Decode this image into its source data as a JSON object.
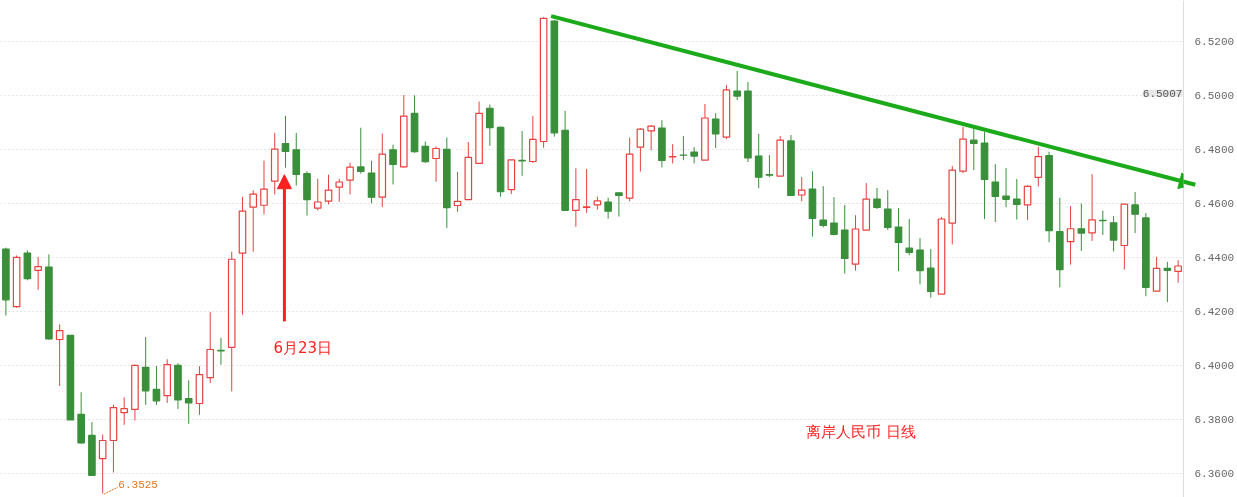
{
  "chart_data": {
    "type": "candlestick",
    "categories": [
      null,
      null,
      null,
      null,
      null,
      null,
      null,
      null,
      null,
      null,
      null,
      null,
      null,
      null,
      null,
      null,
      null,
      null,
      null,
      null,
      null,
      null,
      null,
      null,
      null,
      null,
      null,
      null,
      null,
      null,
      null,
      null,
      null,
      null,
      null,
      null,
      null,
      null,
      null,
      null,
      null,
      null,
      null,
      null,
      null,
      null,
      null,
      null,
      null,
      null,
      null,
      null,
      null,
      null,
      null,
      null,
      null,
      null,
      null,
      null,
      null,
      null,
      null,
      null,
      null,
      null,
      null,
      null,
      null,
      null,
      null,
      null,
      null,
      null,
      null,
      null,
      null,
      null,
      null,
      null,
      null,
      null,
      null,
      null,
      null,
      null,
      null,
      null,
      null,
      null,
      null,
      null,
      null,
      null,
      null,
      null,
      null,
      null,
      null,
      null,
      null,
      null,
      null,
      null,
      null,
      null,
      null,
      null,
      null,
      null
    ],
    "ohlc": [
      [
        6.443,
        6.4435,
        6.4184,
        6.4242
      ],
      [
        6.4217,
        6.4406,
        6.4212,
        6.4399
      ],
      [
        6.4415,
        6.4425,
        6.4314,
        6.432
      ],
      [
        6.4351,
        6.44,
        6.4279,
        6.4365
      ],
      [
        6.4363,
        6.441,
        6.4094,
        6.4097
      ],
      [
        6.4095,
        6.4151,
        6.3923,
        6.4128
      ],
      [
        6.411,
        6.411,
        6.3797,
        6.3797
      ],
      [
        6.3818,
        6.39,
        6.3708,
        6.3712
      ],
      [
        6.374,
        6.3789,
        6.359,
        6.3592
      ],
      [
        6.3654,
        6.3743,
        6.3525,
        6.3721
      ],
      [
        6.3721,
        6.3854,
        6.3603,
        6.3843
      ],
      [
        6.3824,
        6.3881,
        6.3779,
        6.3839
      ],
      [
        6.3836,
        6.4002,
        6.3795,
        6.3999
      ],
      [
        6.3992,
        6.4104,
        6.3853,
        6.3905
      ],
      [
        6.391,
        6.3997,
        6.3853,
        6.3868
      ],
      [
        6.3887,
        6.4022,
        6.386,
        6.4002
      ],
      [
        6.3999,
        6.4007,
        6.3838,
        6.3871
      ],
      [
        6.3876,
        6.3944,
        6.3783,
        6.386
      ],
      [
        6.3858,
        6.3996,
        6.3816,
        6.3965
      ],
      [
        6.3954,
        6.4196,
        6.3934,
        6.4058
      ],
      [
        6.4055,
        6.4101,
        6.4002,
        6.4053
      ],
      [
        6.4066,
        6.442,
        6.3903,
        6.4392
      ],
      [
        6.4415,
        6.4623,
        6.4187,
        6.457
      ],
      [
        6.4585,
        6.4647,
        6.442,
        6.4633
      ],
      [
        6.4592,
        6.4757,
        6.4558,
        6.4652
      ],
      [
        6.4681,
        6.486,
        6.4632,
        6.48
      ],
      [
        6.482,
        6.4923,
        6.4731,
        6.4791
      ],
      [
        6.4797,
        6.486,
        6.4665,
        6.4706
      ],
      [
        6.4709,
        6.4718,
        6.4554,
        6.4613
      ],
      [
        6.4581,
        6.469,
        6.4573,
        6.4604
      ],
      [
        6.4607,
        6.4705,
        6.4595,
        6.4648
      ],
      [
        6.4659,
        6.469,
        6.4605,
        6.4678
      ],
      [
        6.4685,
        6.4749,
        6.4632,
        6.4733
      ],
      [
        6.4734,
        6.4879,
        6.4709,
        6.4717
      ],
      [
        6.4711,
        6.4757,
        6.4599,
        6.4622
      ],
      [
        6.4622,
        6.4857,
        6.4586,
        6.4781
      ],
      [
        6.4797,
        6.4816,
        6.4669,
        6.4743
      ],
      [
        6.4734,
        6.5,
        6.4731,
        6.4922
      ],
      [
        6.4932,
        6.4999,
        6.4786,
        6.479
      ],
      [
        6.481,
        6.4828,
        6.4749,
        6.4753
      ],
      [
        6.4765,
        6.481,
        6.4679,
        6.4802
      ],
      [
        6.4799,
        6.4843,
        6.4508,
        6.4583
      ],
      [
        6.4591,
        6.4715,
        6.4568,
        6.4606
      ],
      [
        6.4613,
        6.4826,
        6.4613,
        6.4769
      ],
      [
        6.4747,
        6.4976,
        6.4747,
        6.4932
      ],
      [
        6.4951,
        6.4965,
        6.4812,
        6.4879
      ],
      [
        6.488,
        6.4884,
        6.4623,
        6.4642
      ],
      [
        6.465,
        6.476,
        6.4634,
        6.476
      ],
      [
        6.4758,
        6.4867,
        6.4701,
        6.4756
      ],
      [
        6.4754,
        6.4922,
        6.4749,
        6.4836
      ],
      [
        6.4828,
        6.5288,
        6.4805,
        6.5284
      ],
      [
        6.5274,
        6.5278,
        6.4846,
        6.486
      ],
      [
        6.4869,
        6.4941,
        6.4573,
        6.4573
      ],
      [
        6.4573,
        6.4729,
        6.4512,
        6.4613
      ],
      [
        6.4584,
        6.4726,
        6.4564,
        6.4586
      ],
      [
        6.4593,
        6.4624,
        6.4576,
        6.4608
      ],
      [
        6.4604,
        6.462,
        6.4542,
        6.457
      ],
      [
        6.4638,
        6.4638,
        6.455,
        6.4628
      ],
      [
        6.4618,
        6.4842,
        6.4607,
        6.4781
      ],
      [
        6.4807,
        6.4878,
        6.4717,
        6.4874
      ],
      [
        6.4867,
        6.4889,
        6.4795,
        6.4885
      ],
      [
        6.4878,
        6.4907,
        6.4732,
        6.4758
      ],
      [
        6.4771,
        6.4818,
        6.4747,
        6.4772
      ],
      [
        6.4778,
        6.4848,
        6.4759,
        6.4777
      ],
      [
        6.4789,
        6.4807,
        6.4747,
        6.4774
      ],
      [
        6.4759,
        6.4967,
        6.4759,
        6.4915
      ],
      [
        6.4911,
        6.4933,
        6.4804,
        6.4856
      ],
      [
        6.4844,
        6.5037,
        6.4837,
        6.5019
      ],
      [
        6.5015,
        6.5089,
        6.4981,
        6.4996
      ],
      [
        6.5015,
        6.5048,
        6.4752,
        6.4767
      ],
      [
        6.4774,
        6.4856,
        6.4655,
        6.4696
      ],
      [
        6.4705,
        6.4778,
        6.4696,
        6.4703
      ],
      [
        6.47,
        6.4848,
        6.47,
        6.4833
      ],
      [
        6.483,
        6.4852,
        6.4626,
        6.4628
      ],
      [
        6.463,
        6.4696,
        6.4607,
        6.4648
      ],
      [
        6.4652,
        6.4718,
        6.4476,
        6.4543
      ],
      [
        6.4537,
        6.4663,
        6.451,
        6.4517
      ],
      [
        6.4526,
        6.4622,
        6.448,
        6.4484
      ],
      [
        6.45,
        6.4593,
        6.4339,
        6.4395
      ],
      [
        6.4374,
        6.4555,
        6.435,
        6.4504
      ],
      [
        6.45,
        6.4674,
        6.45,
        6.4615
      ],
      [
        6.4615,
        6.4656,
        6.4578,
        6.4584
      ],
      [
        6.4578,
        6.4648,
        6.45,
        6.451
      ],
      [
        6.4511,
        6.4581,
        6.4348,
        6.4454
      ],
      [
        6.4433,
        6.4541,
        6.4407,
        6.4417
      ],
      [
        6.4426,
        6.447,
        6.4299,
        6.435
      ],
      [
        6.4359,
        6.443,
        6.425,
        6.4273
      ],
      [
        6.4263,
        6.4548,
        6.4263,
        6.4541
      ],
      [
        6.4526,
        6.4737,
        6.4447,
        6.4722
      ],
      [
        6.4718,
        6.4882,
        6.4711,
        6.4837
      ],
      [
        6.4833,
        6.4877,
        6.4722,
        6.4821
      ],
      [
        6.4822,
        6.4863,
        6.4541,
        6.4688
      ],
      [
        6.4678,
        6.4744,
        6.453,
        6.4625
      ],
      [
        6.4626,
        6.473,
        6.4585,
        6.4614
      ],
      [
        6.4615,
        6.4689,
        6.4539,
        6.4595
      ],
      [
        6.4593,
        6.4666,
        6.4537,
        6.4662
      ],
      [
        6.4695,
        6.4809,
        6.4662,
        6.4772
      ],
      [
        6.4776,
        6.479,
        6.4455,
        6.4498
      ],
      [
        6.4494,
        6.462,
        6.4288,
        6.4354
      ],
      [
        6.4457,
        6.4589,
        6.4372,
        6.4505
      ],
      [
        6.4505,
        6.4598,
        6.4423,
        6.4489
      ],
      [
        6.449,
        6.4707,
        6.446,
        6.4538
      ],
      [
        6.4536,
        6.4572,
        6.4482,
        6.4535
      ],
      [
        6.4527,
        6.4552,
        6.4421,
        6.4463
      ],
      [
        6.4443,
        6.4596,
        6.4354,
        6.4596
      ],
      [
        6.4593,
        6.4641,
        6.4489,
        6.4559
      ],
      [
        6.4545,
        6.4563,
        6.4255,
        6.4288
      ],
      [
        6.4274,
        6.44,
        6.4274,
        6.4358
      ],
      [
        6.4358,
        6.4382,
        6.4233,
        6.4351
      ],
      [
        6.4347,
        6.4389,
        6.4305,
        6.4367
      ]
    ],
    "ylim": [
      6.351,
      6.535
    ],
    "yticks": [
      {
        "value": 6.36,
        "label": "6.3600"
      },
      {
        "value": 6.38,
        "label": "6.3800"
      },
      {
        "value": 6.4,
        "label": "6.4000"
      },
      {
        "value": 6.42,
        "label": "6.4200"
      },
      {
        "value": 6.44,
        "label": "6.4400"
      },
      {
        "value": 6.46,
        "label": "6.4600"
      },
      {
        "value": 6.48,
        "label": "6.4800"
      },
      {
        "value": 6.5,
        "label": "6.5000"
      },
      {
        "value": 6.52,
        "label": "6.5200"
      }
    ],
    "grid": "y",
    "tick_labels": "y",
    "annotations": [
      "6月23日",
      "离岸人民币 日线",
      "6.3525",
      "6.5007"
    ]
  }
}
